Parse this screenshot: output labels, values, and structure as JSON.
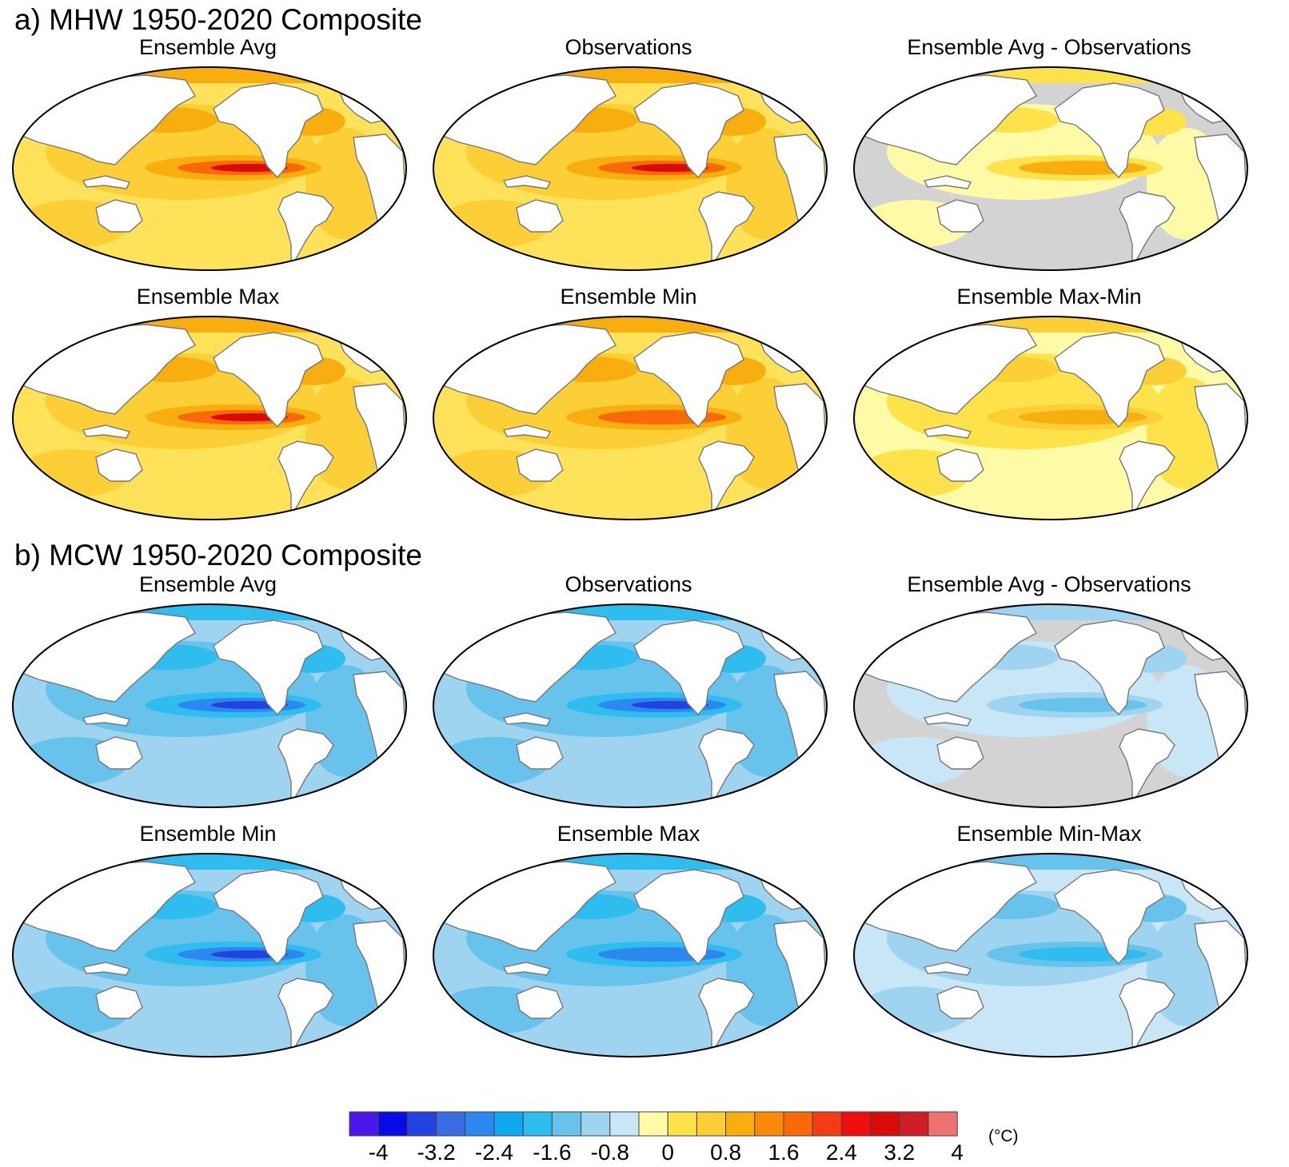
{
  "sections": [
    {
      "title": "a) MHW 1950-2020 Composite",
      "panels": [
        {
          "title": "Ensemble Avg",
          "palette": "warm",
          "intensity": "strong"
        },
        {
          "title": "Observations",
          "palette": "warm",
          "intensity": "strong"
        },
        {
          "title": "Ensemble Avg - Observations",
          "palette": "diff-warm",
          "intensity": "weak"
        },
        {
          "title": "Ensemble Max",
          "palette": "warm",
          "intensity": "max"
        },
        {
          "title": "Ensemble Min",
          "palette": "warm",
          "intensity": "weak"
        },
        {
          "title": "Ensemble Max-Min",
          "palette": "warm",
          "intensity": "light"
        }
      ]
    },
    {
      "title": "b) MCW 1950-2020 Composite",
      "panels": [
        {
          "title": "Ensemble Avg",
          "palette": "cool",
          "intensity": "strong"
        },
        {
          "title": "Observations",
          "palette": "cool",
          "intensity": "strong"
        },
        {
          "title": "Ensemble Avg - Observations",
          "palette": "diff-cool",
          "intensity": "weak"
        },
        {
          "title": "Ensemble Min",
          "palette": "cool",
          "intensity": "max"
        },
        {
          "title": "Ensemble Max",
          "palette": "cool",
          "intensity": "weak"
        },
        {
          "title": "Ensemble Min-Max",
          "palette": "cool",
          "intensity": "light"
        }
      ]
    }
  ],
  "colorbar": {
    "colors": [
      "#4b17e8",
      "#0a0ae6",
      "#2342e0",
      "#3a6de2",
      "#2c87ee",
      "#0ea9f0",
      "#2fbcee",
      "#67c2ec",
      "#9fd4f0",
      "#c8e6f6",
      "#fefaa6",
      "#fde24a",
      "#fccf36",
      "#f9ae10",
      "#f98a06",
      "#f96908",
      "#f43c14",
      "#ef0e0e",
      "#d80b0b",
      "#cc1e24",
      "#ef7272"
    ],
    "labels": [
      "-4",
      "-3.2",
      "-2.4",
      "-1.6",
      "-0.8",
      "0",
      "0.8",
      "1.6",
      "2.4",
      "3.2",
      "4"
    ],
    "unit": "(°C)"
  }
}
